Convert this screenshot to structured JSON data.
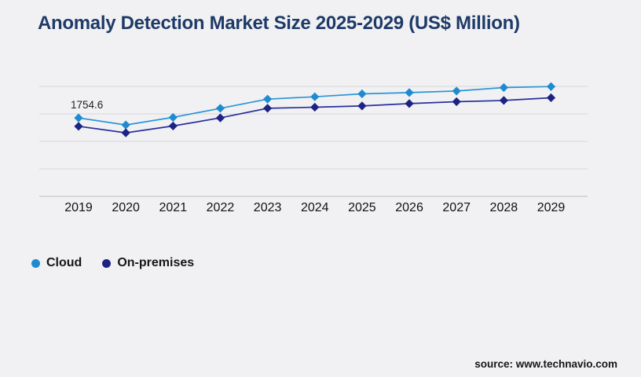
{
  "title": "Anomaly Detection Market Size 2025-2029 (US$ Million)",
  "source": "source: www.technavio.com",
  "colors": {
    "background": "#f1f1f3",
    "title": "#1e3a68",
    "cloud": "#1e8bd1",
    "cloud_line": "#2a96d8",
    "on_premises": "#1d2383",
    "on_premises_line": "#28309b",
    "gridline": "#d7d7d9",
    "axis_line": "#bdbdbf",
    "label_text": "#161616"
  },
  "legend": [
    {
      "label": "Cloud",
      "color": "#1e8bd1"
    },
    {
      "label": "On-premises",
      "color": "#1d2383"
    }
  ],
  "chart_data": {
    "type": "line",
    "title": "Anomaly Detection Market Size 2025-2029 (US$ Million)",
    "categories": [
      "2019",
      "2020",
      "2021",
      "2022",
      "2023",
      "2024",
      "2025",
      "2026",
      "2027",
      "2028",
      "2029"
    ],
    "series": [
      {
        "name": "Cloud",
        "color": "#1e8bd1",
        "line_color": "#2a96d8",
        "values": [
          1754.6,
          1597,
          1767,
          1970,
          2176,
          2228,
          2293,
          2321,
          2356,
          2434,
          2456
        ]
      },
      {
        "name": "On-premises",
        "color": "#1d2383",
        "line_color": "#28309b",
        "values": [
          1567,
          1421,
          1574,
          1755,
          1970,
          1995,
          2023,
          2076,
          2118,
          2146,
          2206
        ]
      }
    ],
    "xlabel": "",
    "ylabel": "",
    "ylim": [
      0,
      2460
    ],
    "gridline_count": 5,
    "grid": true,
    "marker": "diamond",
    "legend_position": "bottom-left",
    "annotations": [
      {
        "series": "Cloud",
        "category": "2019",
        "text": "1754.6"
      }
    ]
  }
}
